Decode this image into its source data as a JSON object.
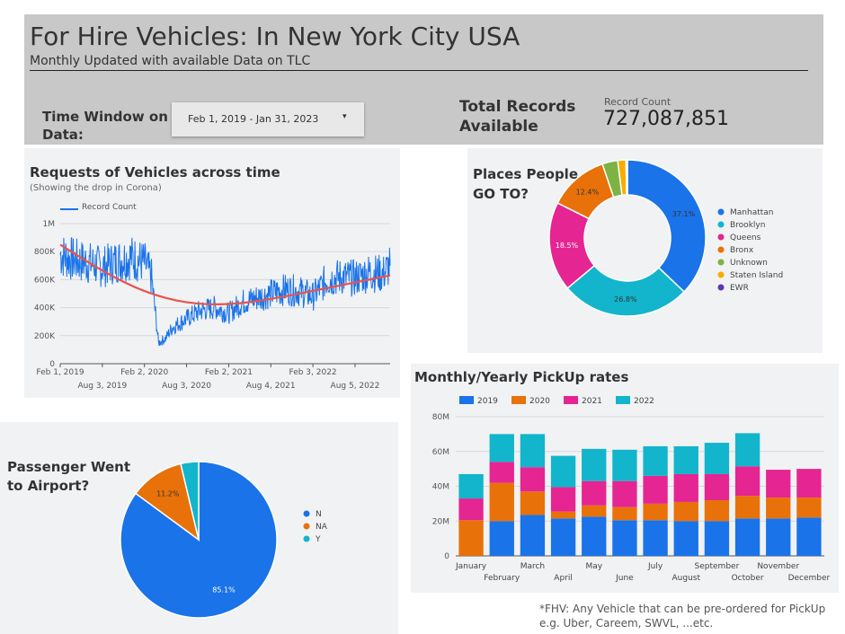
{
  "header": {
    "title": "For Hire Vehicles: In New York City USA",
    "subtitle": "Monthly Updated with available Data on TLC",
    "time_window_label": "Time Window on Data:",
    "date_range": "Feb 1, 2019 - Jan 31, 2023",
    "total_records_label": "Total Records Available",
    "record_count_label": "Record Count",
    "record_count_value": "727,087,851"
  },
  "footnote": {
    "line1": "*FHV: Any Vehicle that can be pre-ordered for PickUp",
    "line2": "e.g. Uber, Careem, SWVL, ...etc."
  },
  "chart_data": [
    {
      "type": "line",
      "title": "Requests of Vehicles across time",
      "subtitle": "(Showing the drop in Corona)",
      "legend": "Record Count",
      "color": "#1a73e8",
      "trend_color": "#e8544e",
      "ylim": [
        0,
        1000000
      ],
      "y_ticks": [
        "0",
        "200K",
        "400K",
        "600K",
        "800K",
        "1M"
      ],
      "x_ticks_top": [
        "Feb 1, 2019",
        "Feb 2, 2020",
        "Feb 2, 2021",
        "Feb 3, 2022"
      ],
      "x_ticks_bottom": [
        "Aug 3, 2019",
        "Aug 3, 2020",
        "Aug 4, 2021",
        "Aug 5, 2022"
      ],
      "series": [
        {
          "name": "Record Count",
          "x": [
            "2019-02",
            "2019-04",
            "2019-06",
            "2019-08",
            "2019-10",
            "2019-12",
            "2020-02",
            "2020-03",
            "2020-04",
            "2020-05",
            "2020-06",
            "2020-08",
            "2020-10",
            "2020-12",
            "2021-02",
            "2021-04",
            "2021-06",
            "2021-08",
            "2021-10",
            "2021-12",
            "2022-02",
            "2022-04",
            "2022-06",
            "2022-08",
            "2022-10",
            "2022-12",
            "2023-01"
          ],
          "values": [
            780000,
            740000,
            720000,
            690000,
            730000,
            760000,
            720000,
            620000,
            150000,
            180000,
            260000,
            320000,
            380000,
            400000,
            360000,
            440000,
            470000,
            500000,
            530000,
            520000,
            480000,
            600000,
            620000,
            610000,
            650000,
            640000,
            700000
          ]
        },
        {
          "name": "Trend",
          "x": [
            "2019-02",
            "2019-08",
            "2020-02",
            "2020-08",
            "2021-02",
            "2021-08",
            "2022-02",
            "2022-08",
            "2023-01"
          ],
          "values": [
            850000,
            660000,
            510000,
            430000,
            420000,
            460000,
            520000,
            580000,
            630000
          ]
        }
      ]
    },
    {
      "type": "pie",
      "title": "Places People GO TO?",
      "donut": true,
      "labels": [
        "Manhattan",
        "Brooklyn",
        "Queens",
        "Bronx",
        "Unknown",
        "Staten Island",
        "EWR"
      ],
      "values": [
        37.1,
        26.8,
        18.5,
        12.4,
        3.2,
        1.7,
        0.3
      ],
      "value_labels": [
        "37.1%",
        "26.8%",
        "18.5%",
        "12.4%",
        "",
        "",
        ""
      ],
      "colors": [
        "#1a73e8",
        "#12b5cb",
        "#e52592",
        "#e8710a",
        "#7cb342",
        "#f9ab00",
        "#5e35b1"
      ]
    },
    {
      "type": "pie",
      "title": "Passenger Went to Airport?",
      "donut": false,
      "labels": [
        "N",
        "NA",
        "Y"
      ],
      "values": [
        85.1,
        11.2,
        3.7
      ],
      "value_labels": [
        "85.1%",
        "11.2%",
        ""
      ],
      "colors": [
        "#1a73e8",
        "#e8710a",
        "#12b5cb"
      ]
    },
    {
      "type": "bar",
      "stacked": true,
      "title": "Monthly/Yearly PickUp rates",
      "categories": [
        "January",
        "February",
        "March",
        "April",
        "May",
        "June",
        "July",
        "August",
        "September",
        "October",
        "November",
        "December"
      ],
      "ylim": [
        0,
        80
      ],
      "y_ticks": [
        "0",
        "20M",
        "40M",
        "60M",
        "80M"
      ],
      "series": [
        {
          "name": "2019",
          "color": "#1a73e8",
          "values": [
            0,
            20,
            23.5,
            21.5,
            22.5,
            20.5,
            20.5,
            20,
            20,
            21.5,
            21.5,
            22
          ]
        },
        {
          "name": "2020",
          "color": "#e8710a",
          "values": [
            20.5,
            22,
            13.5,
            4,
            6.5,
            7.5,
            9.5,
            11,
            12,
            13,
            12,
            11.5
          ]
        },
        {
          "name": "2021",
          "color": "#e52592",
          "values": [
            12.5,
            12,
            14,
            14,
            14,
            15,
            16,
            16,
            15,
            17,
            16,
            16.5
          ]
        },
        {
          "name": "2022",
          "color": "#12b5cb",
          "values": [
            14,
            16,
            19,
            18,
            18.5,
            18,
            17,
            16,
            18,
            19,
            0,
            0
          ]
        }
      ]
    }
  ]
}
